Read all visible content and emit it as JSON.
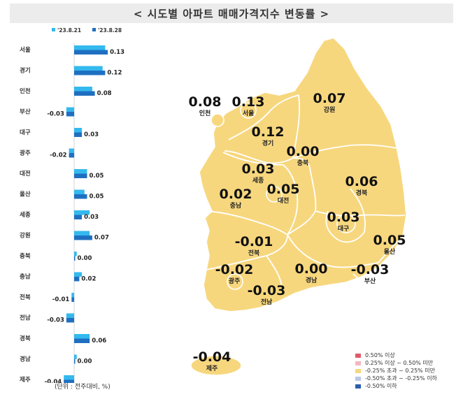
{
  "title": "< 시도별 아파트 매매가격지수 변동률 >",
  "unit_note": "(단위 : 전주대비, %)",
  "colors": {
    "prev": "#34b9ee",
    "curr": "#1f6fc1",
    "map_fill": "#f7d77e",
    "map_border": "#ffffff",
    "legend": [
      "#e05a6a",
      "#f2b8bf",
      "#f7d77e",
      "#b9c8e8",
      "#2e5fb0"
    ]
  },
  "chart_data": {
    "type": "bar",
    "orientation": "horizontal",
    "series": [
      {
        "name": "'23.8.21",
        "values": [
          0.12,
          0.11,
          0.07,
          -0.03,
          0.03,
          -0.02,
          0.05,
          0.04,
          0.06,
          0.06,
          0.01,
          0.03,
          -0.01,
          -0.03,
          0.06,
          0.01,
          -0.04
        ]
      },
      {
        "name": "'23.8.28",
        "values": [
          0.13,
          0.12,
          0.08,
          -0.03,
          0.03,
          -0.02,
          0.05,
          0.05,
          0.03,
          0.07,
          0.0,
          0.02,
          -0.01,
          -0.03,
          0.06,
          0.0,
          -0.04
        ]
      }
    ],
    "categories": [
      "서울",
      "경기",
      "인천",
      "부산",
      "대구",
      "광주",
      "대전",
      "울산",
      "세종",
      "강원",
      "충북",
      "충남",
      "전북",
      "전남",
      "경북",
      "경남",
      "제주"
    ],
    "data_labels": [
      "0.13",
      "0.12",
      "0.08",
      "-0.03",
      "0.03",
      "-0.02",
      "0.05",
      "0.05",
      "0.03",
      "0.07",
      "0.00",
      "0.02",
      "-0.01",
      "-0.03",
      "0.06",
      "0.00",
      "-0.04"
    ],
    "legend_position": "top",
    "xlim": [
      -0.05,
      0.15
    ]
  },
  "map": {
    "regions": [
      {
        "name": "인천",
        "value": "0.08"
      },
      {
        "name": "서울",
        "value": "0.13"
      },
      {
        "name": "강원",
        "value": "0.07"
      },
      {
        "name": "경기",
        "value": "0.12"
      },
      {
        "name": "충북",
        "value": "0.00"
      },
      {
        "name": "세종",
        "value": "0.03"
      },
      {
        "name": "경북",
        "value": "0.06"
      },
      {
        "name": "대전",
        "value": "0.05"
      },
      {
        "name": "충남",
        "value": "0.02"
      },
      {
        "name": "대구",
        "value": "0.03"
      },
      {
        "name": "울산",
        "value": "0.05"
      },
      {
        "name": "전북",
        "value": "-0.01"
      },
      {
        "name": "광주",
        "value": "-0.02"
      },
      {
        "name": "경남",
        "value": "0.00"
      },
      {
        "name": "부산",
        "value": "-0.03"
      },
      {
        "name": "전남",
        "value": "-0.03"
      },
      {
        "name": "제주",
        "value": "-0.04"
      }
    ]
  },
  "legend": [
    {
      "label": "0.50% 이상"
    },
    {
      "label": "0.25% 이상 ~ 0.50% 미만"
    },
    {
      "label": "-0.25% 초과 ~ 0.25% 미만"
    },
    {
      "label": "-0.50% 초과 ~ -0.25% 이하"
    },
    {
      "label": "-0.50% 이하"
    }
  ]
}
